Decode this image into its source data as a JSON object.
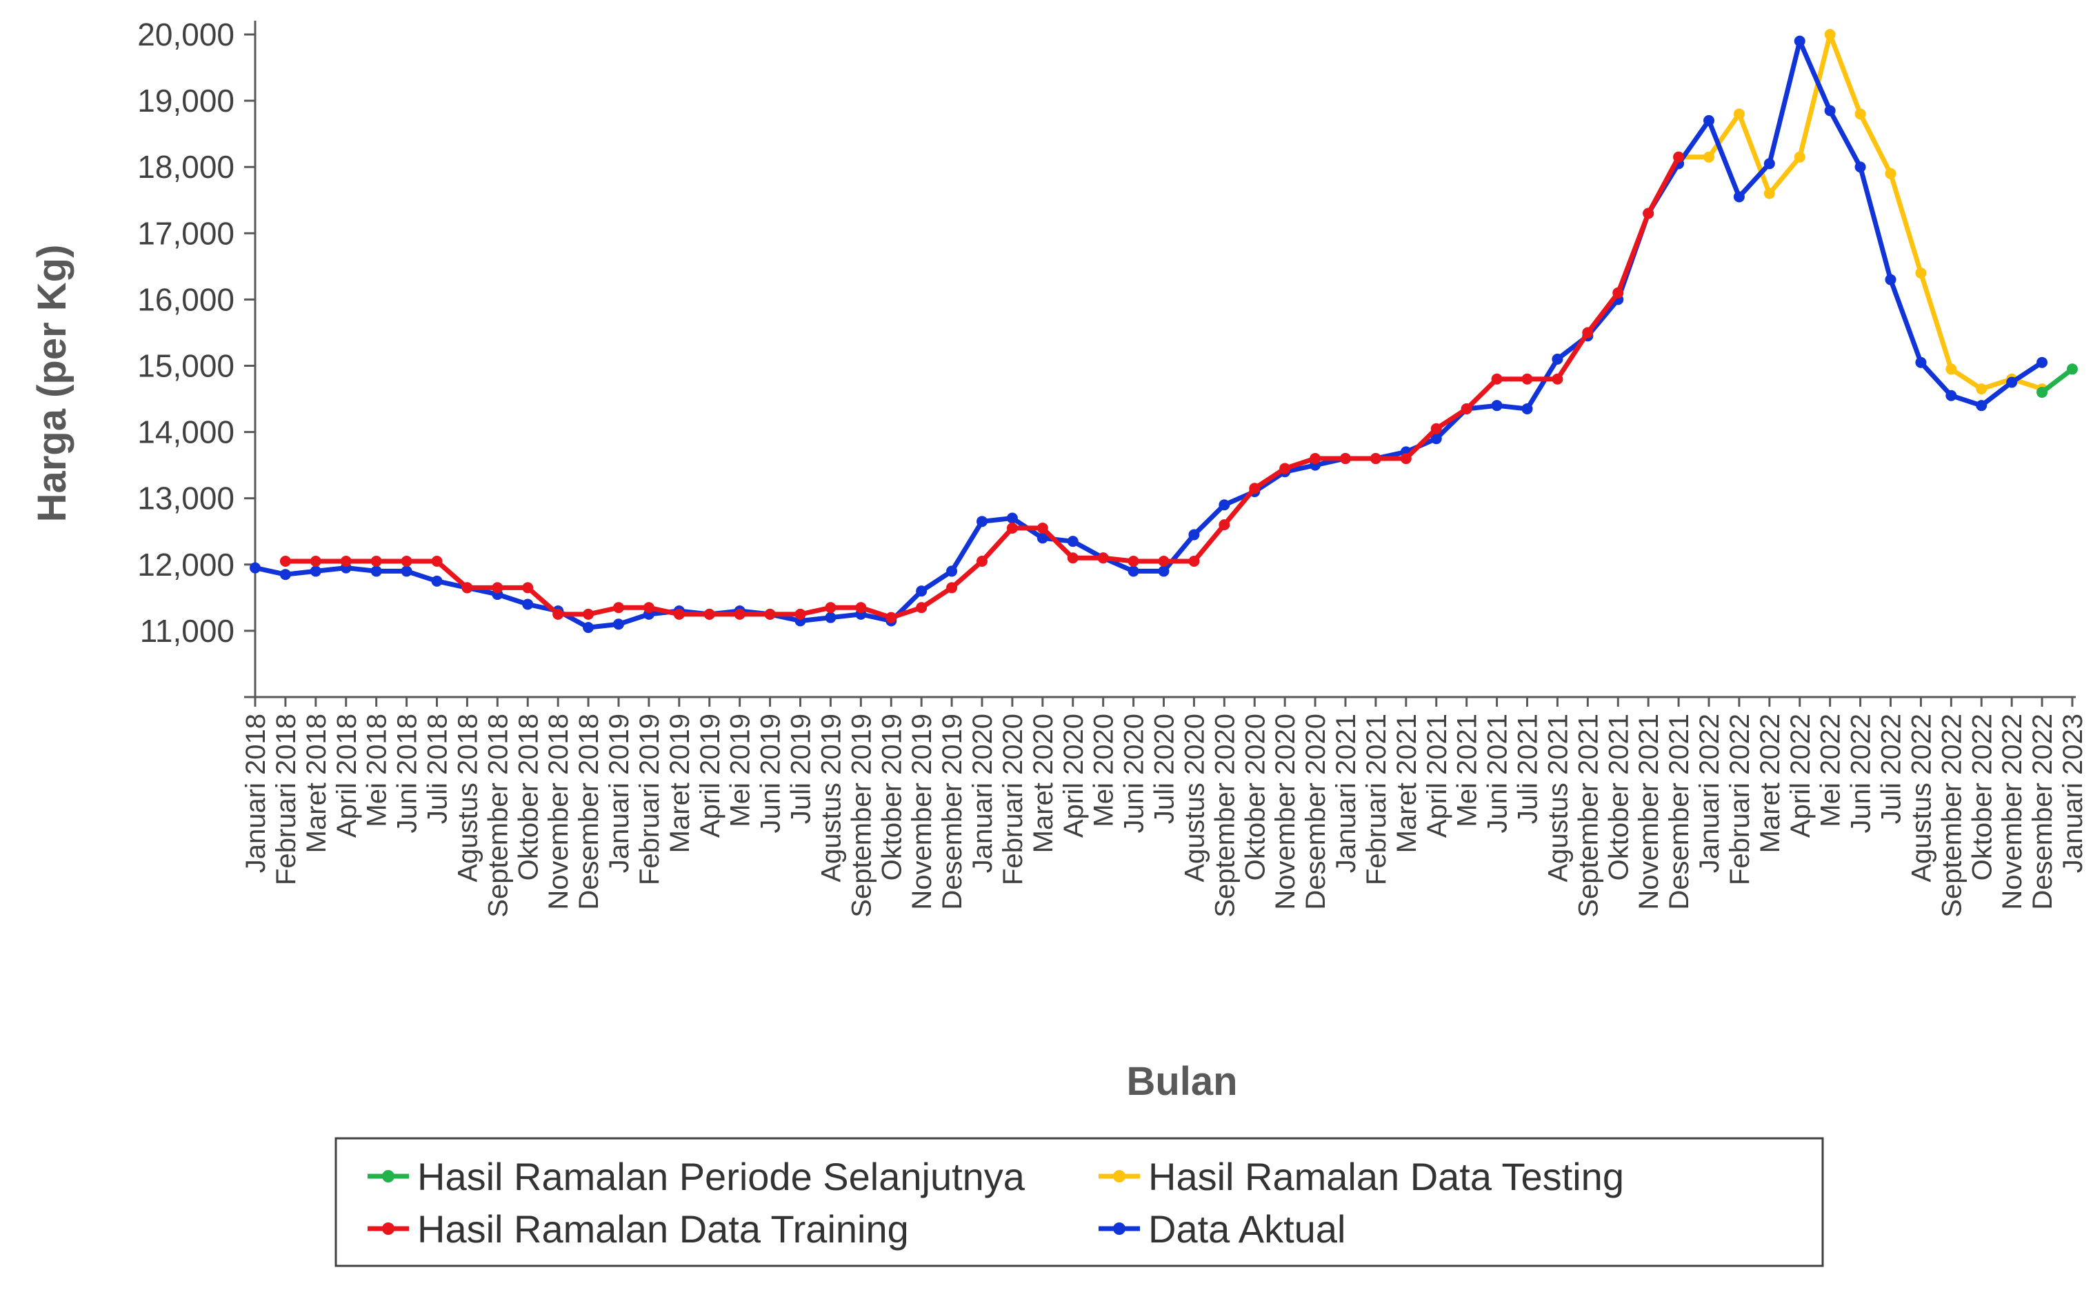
{
  "chart_data": {
    "type": "line",
    "xlabel": "Bulan",
    "ylabel": "Harga (per Kg)",
    "ylim": [
      10000,
      20000
    ],
    "yticks": [
      11000,
      12000,
      13000,
      14000,
      15000,
      16000,
      17000,
      18000,
      19000,
      20000
    ],
    "ytick_labels": [
      "11,000",
      "12,000",
      "13,000",
      "14,000",
      "15,000",
      "16,000",
      "17,000",
      "18,000",
      "19,000",
      "20,000"
    ],
    "grid": false,
    "legend_position": "bottom",
    "categories": [
      "Januari 2018",
      "Februari 2018",
      "Maret 2018",
      "April 2018",
      "Mei 2018",
      "Juni 2018",
      "Juli 2018",
      "Agustus 2018",
      "September 2018",
      "Oktober 2018",
      "November 2018",
      "Desember 2018",
      "Januari 2019",
      "Februari 2019",
      "Maret 2019",
      "April 2019",
      "Mei 2019",
      "Juni 2019",
      "Juli 2019",
      "Agustus 2019",
      "September 2019",
      "Oktober 2019",
      "November 2019",
      "Desember 2019",
      "Januari 2020",
      "Februari 2020",
      "Maret 2020",
      "April 2020",
      "Mei 2020",
      "Juni 2020",
      "Juli 2020",
      "Agustus 2020",
      "September 2020",
      "Oktober 2020",
      "November 2020",
      "Desember 2020",
      "Januari 2021",
      "Februari 2021",
      "Maret 2021",
      "April 2021",
      "Mei 2021",
      "Juni 2021",
      "Juli 2021",
      "Agustus 2021",
      "September 2021",
      "Oktober 2021",
      "November 2021",
      "Desember 2021",
      "Januari 2022",
      "Februari 2022",
      "Maret 2022",
      "April 2022",
      "Mei 2022",
      "Juni 2022",
      "Juli 2022",
      "Agustus 2022",
      "September 2022",
      "Oktober 2022",
      "November 2022",
      "Desember 2022",
      "Januari 2023"
    ],
    "series": [
      {
        "name": "Data Aktual",
        "color": "#1034D8",
        "values": [
          11950,
          11850,
          11900,
          11950,
          11900,
          11900,
          11750,
          11650,
          11550,
          11400,
          11300,
          11050,
          11100,
          11250,
          11300,
          11250,
          11300,
          11250,
          11150,
          11200,
          11250,
          11150,
          11600,
          11900,
          12650,
          12700,
          12400,
          12350,
          12100,
          11900,
          11900,
          12450,
          12900,
          13100,
          13400,
          13500,
          13600,
          13600,
          13700,
          13900,
          14350,
          14400,
          14350,
          15100,
          15450,
          16000,
          17300,
          18050,
          18700,
          17550,
          18050,
          19900,
          18850,
          18000,
          16300,
          15050,
          14550,
          14400,
          14750,
          15050,
          null
        ]
      },
      {
        "name": "Hasil Ramalan Data Training",
        "color": "#E8161C",
        "values": [
          null,
          12050,
          12050,
          12050,
          12050,
          12050,
          12050,
          11650,
          11650,
          11650,
          11250,
          11250,
          11350,
          11350,
          11250,
          11250,
          11250,
          11250,
          11250,
          11350,
          11350,
          11200,
          11350,
          11650,
          12050,
          12550,
          12550,
          12100,
          12100,
          12050,
          12050,
          12050,
          12600,
          13150,
          13450,
          13600,
          13600,
          13600,
          13600,
          14050,
          14350,
          14800,
          14800,
          14800,
          15500,
          16100,
          17300,
          18150,
          null,
          null,
          null,
          null,
          null,
          null,
          null,
          null,
          null,
          null,
          null,
          null,
          null
        ]
      },
      {
        "name": "Hasil Ramalan Data Testing",
        "color": "#FFC20E",
        "values": [
          null,
          null,
          null,
          null,
          null,
          null,
          null,
          null,
          null,
          null,
          null,
          null,
          null,
          null,
          null,
          null,
          null,
          null,
          null,
          null,
          null,
          null,
          null,
          null,
          null,
          null,
          null,
          null,
          null,
          null,
          null,
          null,
          null,
          null,
          null,
          null,
          null,
          null,
          null,
          null,
          null,
          null,
          null,
          null,
          null,
          null,
          null,
          18150,
          18150,
          18800,
          17600,
          18150,
          20000,
          18800,
          17900,
          16400,
          14950,
          14650,
          14800,
          14650,
          null
        ]
      },
      {
        "name": "Hasil Ramalan Periode Selanjutnya",
        "color": "#22B24C",
        "values": [
          null,
          null,
          null,
          null,
          null,
          null,
          null,
          null,
          null,
          null,
          null,
          null,
          null,
          null,
          null,
          null,
          null,
          null,
          null,
          null,
          null,
          null,
          null,
          null,
          null,
          null,
          null,
          null,
          null,
          null,
          null,
          null,
          null,
          null,
          null,
          null,
          null,
          null,
          null,
          null,
          null,
          null,
          null,
          null,
          null,
          null,
          null,
          null,
          null,
          null,
          null,
          null,
          null,
          null,
          null,
          null,
          null,
          null,
          null,
          14600,
          14950
        ]
      }
    ],
    "legend": [
      {
        "label": "Hasil Ramalan Periode Selanjutnya",
        "color": "#22B24C"
      },
      {
        "label": "Hasil Ramalan Data Testing",
        "color": "#FFC20E"
      },
      {
        "label": "Hasil Ramalan Data Training",
        "color": "#E8161C"
      },
      {
        "label": "Data Aktual",
        "color": "#1034D8"
      }
    ]
  }
}
